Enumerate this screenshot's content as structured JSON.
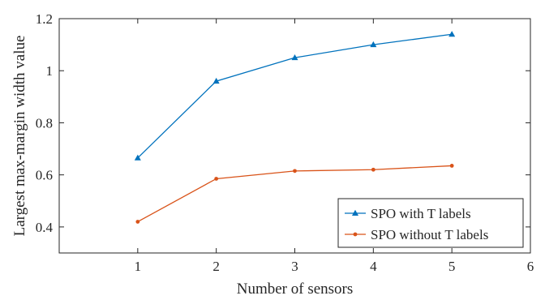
{
  "chart_data": {
    "type": "line",
    "title": "",
    "xlabel": "Number of sensors",
    "ylabel": "Largest max-margin width value",
    "xlim": [
      0,
      6
    ],
    "ylim": [
      0.3,
      1.2
    ],
    "x_ticks": [
      "1",
      "2",
      "3",
      "4",
      "5",
      "6"
    ],
    "y_ticks": [
      "0.4",
      "0.6",
      "0.8",
      "1",
      "1.2"
    ],
    "grid": false,
    "legend_position": "bottom-right",
    "series": [
      {
        "name": "SPO with T labels",
        "color": "#0072BD",
        "marker": "triangle",
        "x": [
          1,
          2,
          3,
          4,
          5
        ],
        "y": [
          0.665,
          0.96,
          1.05,
          1.1,
          1.14
        ]
      },
      {
        "name": "SPO without T labels",
        "color": "#D95319",
        "marker": "dot",
        "x": [
          1,
          2,
          3,
          4,
          5
        ],
        "y": [
          0.42,
          0.585,
          0.615,
          0.62,
          0.635
        ]
      }
    ]
  }
}
